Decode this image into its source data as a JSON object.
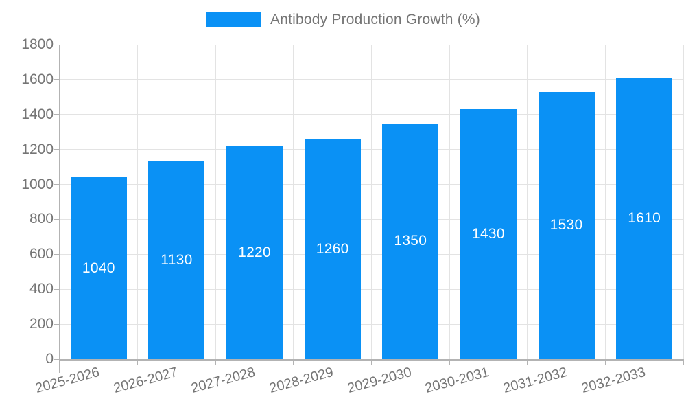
{
  "legend": {
    "label": "Antibody Production Growth (%)"
  },
  "colors": {
    "bar": "#0A91F5",
    "grid": "#E3E3E3",
    "axis": "#B3B3B3",
    "tick_text": "#757575",
    "value_label": "#FFFFFF",
    "background": "#FFFFFF"
  },
  "chart_data": {
    "type": "bar",
    "title": "Antibody Production Growth (%)",
    "categories": [
      "2025-2026",
      "2026-2027",
      "2027-2028",
      "2028-2029",
      "2029-2030",
      "2030-2031",
      "2031-2032",
      "2032-2033"
    ],
    "values": [
      1040,
      1130,
      1220,
      1260,
      1350,
      1430,
      1530,
      1610
    ],
    "xlabel": "",
    "ylabel": "",
    "ylim": [
      0,
      1800
    ],
    "ytick_step": 200,
    "grid": true,
    "legend_position": "top",
    "value_labels": "inside-center",
    "x_tick_rotation_deg": -15
  }
}
